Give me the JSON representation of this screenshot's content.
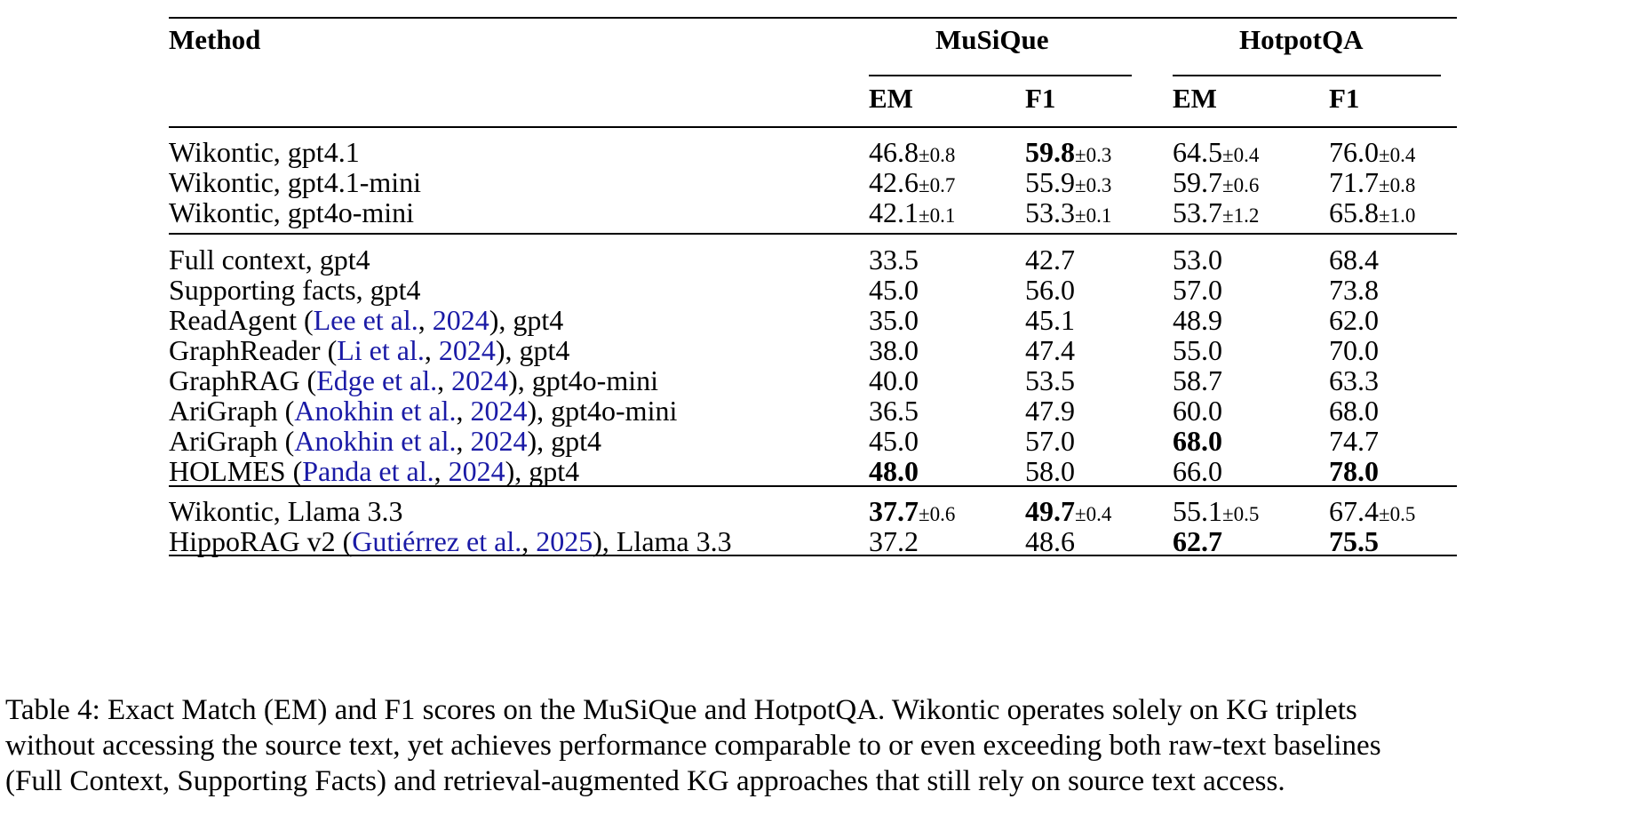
{
  "header": {
    "method": "Method",
    "groups": [
      "MuSiQue",
      "HotpotQA"
    ],
    "sub": [
      "EM",
      "F1",
      "EM",
      "F1"
    ]
  },
  "sections": [
    {
      "rows": [
        {
          "method": [
            {
              "t": "Wikontic, gpt4.1"
            }
          ],
          "cells": [
            {
              "v": "46.8",
              "pm": "±0.8",
              "b": false
            },
            {
              "v": "59.8",
              "pm": "±0.3",
              "b": true
            },
            {
              "v": "64.5",
              "pm": "±0.4",
              "b": false
            },
            {
              "v": "76.0",
              "pm": "±0.4",
              "b": false
            }
          ]
        },
        {
          "method": [
            {
              "t": "Wikontic, gpt4.1-mini"
            }
          ],
          "cells": [
            {
              "v": "42.6",
              "pm": "±0.7",
              "b": false
            },
            {
              "v": "55.9",
              "pm": "±0.3",
              "b": false
            },
            {
              "v": "59.7",
              "pm": "±0.6",
              "b": false
            },
            {
              "v": "71.7",
              "pm": "±0.8",
              "b": false
            }
          ]
        },
        {
          "method": [
            {
              "t": "Wikontic, gpt4o-mini"
            }
          ],
          "cells": [
            {
              "v": "42.1",
              "pm": "±0.1",
              "b": false
            },
            {
              "v": "53.3",
              "pm": "±0.1",
              "b": false
            },
            {
              "v": "53.7",
              "pm": "±1.2",
              "b": false
            },
            {
              "v": "65.8",
              "pm": "±1.0",
              "b": false
            }
          ]
        }
      ]
    },
    {
      "rows": [
        {
          "method": [
            {
              "t": "Full context, gpt4"
            }
          ],
          "cells": [
            {
              "v": "33.5",
              "b": false
            },
            {
              "v": "42.7",
              "b": false
            },
            {
              "v": "53.0",
              "b": false
            },
            {
              "v": "68.4",
              "b": false
            }
          ]
        },
        {
          "method": [
            {
              "t": "Supporting facts, gpt4"
            }
          ],
          "cells": [
            {
              "v": "45.0",
              "b": false
            },
            {
              "v": "56.0",
              "b": false
            },
            {
              "v": "57.0",
              "b": false
            },
            {
              "v": "73.8",
              "b": false
            }
          ]
        },
        {
          "method": [
            {
              "t": "ReadAgent ("
            },
            {
              "t": "Lee et al.",
              "c": true
            },
            {
              "t": ", "
            },
            {
              "t": "2024",
              "c": true
            },
            {
              "t": "), gpt4"
            }
          ],
          "cells": [
            {
              "v": "35.0",
              "b": false
            },
            {
              "v": "45.1",
              "b": false
            },
            {
              "v": "48.9",
              "b": false
            },
            {
              "v": "62.0",
              "b": false
            }
          ]
        },
        {
          "method": [
            {
              "t": "GraphReader ("
            },
            {
              "t": "Li et al.",
              "c": true
            },
            {
              "t": ", "
            },
            {
              "t": "2024",
              "c": true
            },
            {
              "t": "), gpt4"
            }
          ],
          "cells": [
            {
              "v": "38.0",
              "b": false
            },
            {
              "v": "47.4",
              "b": false
            },
            {
              "v": "55.0",
              "b": false
            },
            {
              "v": "70.0",
              "b": false
            }
          ]
        },
        {
          "method": [
            {
              "t": "GraphRAG ("
            },
            {
              "t": "Edge et al.",
              "c": true
            },
            {
              "t": ", "
            },
            {
              "t": "2024",
              "c": true
            },
            {
              "t": "), gpt4o-mini"
            }
          ],
          "cells": [
            {
              "v": "40.0",
              "b": false
            },
            {
              "v": "53.5",
              "b": false
            },
            {
              "v": "58.7",
              "b": false
            },
            {
              "v": "63.3",
              "b": false
            }
          ]
        },
        {
          "method": [
            {
              "t": "AriGraph ("
            },
            {
              "t": "Anokhin et al.",
              "c": true
            },
            {
              "t": ", "
            },
            {
              "t": "2024",
              "c": true
            },
            {
              "t": "), gpt4o-mini"
            }
          ],
          "cells": [
            {
              "v": "36.5",
              "b": false
            },
            {
              "v": "47.9",
              "b": false
            },
            {
              "v": "60.0",
              "b": false
            },
            {
              "v": "68.0",
              "b": false
            }
          ]
        },
        {
          "method": [
            {
              "t": "AriGraph ("
            },
            {
              "t": "Anokhin et al.",
              "c": true
            },
            {
              "t": ", "
            },
            {
              "t": "2024",
              "c": true
            },
            {
              "t": "), gpt4"
            }
          ],
          "cells": [
            {
              "v": "45.0",
              "b": false
            },
            {
              "v": "57.0",
              "b": false
            },
            {
              "v": "68.0",
              "b": true
            },
            {
              "v": "74.7",
              "b": false
            }
          ]
        },
        {
          "method": [
            {
              "t": "HOLMES ("
            },
            {
              "t": "Panda et al.",
              "c": true
            },
            {
              "t": ", "
            },
            {
              "t": "2024",
              "c": true
            },
            {
              "t": "), gpt4"
            }
          ],
          "cells": [
            {
              "v": "48.0",
              "b": true
            },
            {
              "v": "58.0",
              "b": false
            },
            {
              "v": "66.0",
              "b": false
            },
            {
              "v": "78.0",
              "b": true
            }
          ]
        }
      ]
    },
    {
      "rows": [
        {
          "method": [
            {
              "t": "Wikontic, Llama 3.3"
            }
          ],
          "cells": [
            {
              "v": "37.7",
              "pm": "±0.6",
              "b": true
            },
            {
              "v": "49.7",
              "pm": "±0.4",
              "b": true
            },
            {
              "v": "55.1",
              "pm": "±0.5",
              "b": false
            },
            {
              "v": "67.4",
              "pm": "±0.5",
              "b": false
            }
          ]
        },
        {
          "method": [
            {
              "t": "HippoRAG v2 ("
            },
            {
              "t": "Gutiérrez et al.",
              "c": true
            },
            {
              "t": ", "
            },
            {
              "t": "2025",
              "c": true
            },
            {
              "t": "), Llama 3.3"
            }
          ],
          "cells": [
            {
              "v": "37.2",
              "b": false
            },
            {
              "v": "48.6",
              "b": false
            },
            {
              "v": "62.7",
              "b": true
            },
            {
              "v": "75.5",
              "b": true
            }
          ]
        }
      ]
    }
  ],
  "caption": [
    "Table 4: Exact Match (EM) and F1 scores on the MuSiQue and HotpotQA. Wikontic operates solely on KG triplets",
    "without accessing the source text, yet achieves performance comparable to or even exceeding both raw-text baselines",
    "(Full Context, Supporting Facts) and retrieval-augmented KG approaches that still rely on source text access."
  ]
}
